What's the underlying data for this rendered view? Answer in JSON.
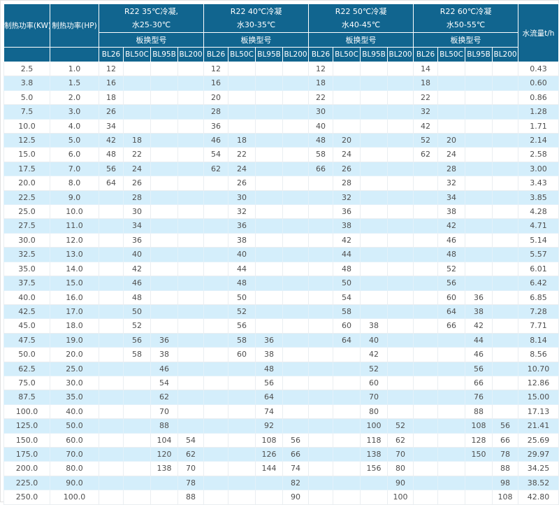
{
  "colors": {
    "header_bg": "#11658f",
    "row_alt_bg": "#d4eefb",
    "data_text": "#4f4f4f"
  },
  "table": {
    "col_kw": "制热功率(KW)",
    "col_hp": "制热功率(HP)",
    "col_flow": "水流量t/h",
    "subheader": "板换型号",
    "models": [
      "BL26",
      "BL50C",
      "BL95B",
      "BL200"
    ],
    "groups": [
      {
        "title_line1": "R22 35℃冷凝,",
        "title_line2": "水25-30℃"
      },
      {
        "title_line1": "R22 40℃冷凝",
        "title_line2": "水30-35℃"
      },
      {
        "title_line1": "R22 50℃冷凝",
        "title_line2": "水40-45℃"
      },
      {
        "title_line1": "R22 60℃冷凝",
        "title_line2": "水50-55℃"
      }
    ],
    "rows": [
      {
        "kw": "2.5",
        "hp": "1.0",
        "g1": [
          "12",
          "",
          "",
          ""
        ],
        "g2": [
          "12",
          "",
          "",
          ""
        ],
        "g3": [
          "12",
          "",
          "",
          ""
        ],
        "g4": [
          "14",
          "",
          "",
          ""
        ],
        "flow": "0.43"
      },
      {
        "kw": "3.8",
        "hp": "1.5",
        "g1": [
          "16",
          "",
          "",
          ""
        ],
        "g2": [
          "16",
          "",
          "",
          ""
        ],
        "g3": [
          "18",
          "",
          "",
          ""
        ],
        "g4": [
          "18",
          "",
          "",
          ""
        ],
        "flow": "0.60"
      },
      {
        "kw": "5.0",
        "hp": "2.0",
        "g1": [
          "18",
          "",
          "",
          ""
        ],
        "g2": [
          "20",
          "",
          "",
          ""
        ],
        "g3": [
          "22",
          "",
          "",
          ""
        ],
        "g4": [
          "22",
          "",
          "",
          ""
        ],
        "flow": "0.86"
      },
      {
        "kw": "7.5",
        "hp": "3.0",
        "g1": [
          "26",
          "",
          "",
          ""
        ],
        "g2": [
          "28",
          "",
          "",
          ""
        ],
        "g3": [
          "30",
          "",
          "",
          ""
        ],
        "g4": [
          "32",
          "",
          "",
          ""
        ],
        "flow": "1.28"
      },
      {
        "kw": "10.0",
        "hp": "4.0",
        "g1": [
          "34",
          "",
          "",
          ""
        ],
        "g2": [
          "36",
          "",
          "",
          ""
        ],
        "g3": [
          "40",
          "",
          "",
          ""
        ],
        "g4": [
          "42",
          "",
          "",
          ""
        ],
        "flow": "1.71"
      },
      {
        "kw": "12.5",
        "hp": "5.0",
        "g1": [
          "42",
          "18",
          "",
          ""
        ],
        "g2": [
          "46",
          "18",
          "",
          ""
        ],
        "g3": [
          "48",
          "20",
          "",
          ""
        ],
        "g4": [
          "52",
          "20",
          "",
          ""
        ],
        "flow": "2.14"
      },
      {
        "kw": "15.0",
        "hp": "6.0",
        "g1": [
          "48",
          "22",
          "",
          ""
        ],
        "g2": [
          "54",
          "22",
          "",
          ""
        ],
        "g3": [
          "58",
          "24",
          "",
          ""
        ],
        "g4": [
          "62",
          "24",
          "",
          ""
        ],
        "flow": "2.58"
      },
      {
        "kw": "17.5",
        "hp": "7.0",
        "g1": [
          "56",
          "24",
          "",
          ""
        ],
        "g2": [
          "62",
          "24",
          "",
          ""
        ],
        "g3": [
          "66",
          "26",
          "",
          ""
        ],
        "g4": [
          "",
          "28",
          "",
          ""
        ],
        "flow": "3.00"
      },
      {
        "kw": "20.0",
        "hp": "8.0",
        "g1": [
          "64",
          "26",
          "",
          ""
        ],
        "g2": [
          "",
          "26",
          "",
          ""
        ],
        "g3": [
          "",
          "28",
          "",
          ""
        ],
        "g4": [
          "",
          "32",
          "",
          ""
        ],
        "flow": "3.43"
      },
      {
        "kw": "22.5",
        "hp": "9.0",
        "g1": [
          "",
          "28",
          "",
          ""
        ],
        "g2": [
          "",
          "30",
          "",
          ""
        ],
        "g3": [
          "",
          "32",
          "",
          ""
        ],
        "g4": [
          "",
          "34",
          "",
          ""
        ],
        "flow": "3.85"
      },
      {
        "kw": "25.0",
        "hp": "10.0",
        "g1": [
          "",
          "30",
          "",
          ""
        ],
        "g2": [
          "",
          "32",
          "",
          ""
        ],
        "g3": [
          "",
          "36",
          "",
          ""
        ],
        "g4": [
          "",
          "38",
          "",
          ""
        ],
        "flow": "4.28"
      },
      {
        "kw": "27.5",
        "hp": "11.0",
        "g1": [
          "",
          "34",
          "",
          ""
        ],
        "g2": [
          "",
          "36",
          "",
          ""
        ],
        "g3": [
          "",
          "38",
          "",
          ""
        ],
        "g4": [
          "",
          "42",
          "",
          ""
        ],
        "flow": "4.71"
      },
      {
        "kw": "30.0",
        "hp": "12.0",
        "g1": [
          "",
          "36",
          "",
          ""
        ],
        "g2": [
          "",
          "38",
          "",
          ""
        ],
        "g3": [
          "",
          "42",
          "",
          ""
        ],
        "g4": [
          "",
          "46",
          "",
          ""
        ],
        "flow": "5.14"
      },
      {
        "kw": "32.5",
        "hp": "13.0",
        "g1": [
          "",
          "40",
          "",
          ""
        ],
        "g2": [
          "",
          "40",
          "",
          ""
        ],
        "g3": [
          "",
          "44",
          "",
          ""
        ],
        "g4": [
          "",
          "48",
          "",
          ""
        ],
        "flow": "5.57"
      },
      {
        "kw": "35.0",
        "hp": "14.0",
        "g1": [
          "",
          "42",
          "",
          ""
        ],
        "g2": [
          "",
          "44",
          "",
          ""
        ],
        "g3": [
          "",
          "48",
          "",
          ""
        ],
        "g4": [
          "",
          "52",
          "",
          ""
        ],
        "flow": "6.01"
      },
      {
        "kw": "37.5",
        "hp": "15.0",
        "g1": [
          "",
          "46",
          "",
          ""
        ],
        "g2": [
          "",
          "48",
          "",
          ""
        ],
        "g3": [
          "",
          "50",
          "",
          ""
        ],
        "g4": [
          "",
          "56",
          "",
          ""
        ],
        "flow": "6.42"
      },
      {
        "kw": "40.0",
        "hp": "16.0",
        "g1": [
          "",
          "48",
          "",
          ""
        ],
        "g2": [
          "",
          "50",
          "",
          ""
        ],
        "g3": [
          "",
          "54",
          "",
          ""
        ],
        "g4": [
          "",
          "60",
          "36",
          ""
        ],
        "flow": "6.85"
      },
      {
        "kw": "42.5",
        "hp": "17.0",
        "g1": [
          "",
          "50",
          "",
          ""
        ],
        "g2": [
          "",
          "52",
          "",
          ""
        ],
        "g3": [
          "",
          "58",
          "",
          ""
        ],
        "g4": [
          "",
          "64",
          "38",
          ""
        ],
        "flow": "7.28"
      },
      {
        "kw": "45.0",
        "hp": "18.0",
        "g1": [
          "",
          "52",
          "",
          ""
        ],
        "g2": [
          "",
          "56",
          "",
          ""
        ],
        "g3": [
          "",
          "60",
          "38",
          ""
        ],
        "g4": [
          "",
          "66",
          "42",
          ""
        ],
        "flow": "7.71"
      },
      {
        "kw": "47.5",
        "hp": "19.0",
        "g1": [
          "",
          "56",
          "36",
          ""
        ],
        "g2": [
          "",
          "58",
          "36",
          ""
        ],
        "g3": [
          "",
          "64",
          "40",
          ""
        ],
        "g4": [
          "",
          "",
          "44",
          ""
        ],
        "flow": "8.14"
      },
      {
        "kw": "50.0",
        "hp": "20.0",
        "g1": [
          "",
          "58",
          "38",
          ""
        ],
        "g2": [
          "",
          "60",
          "38",
          ""
        ],
        "g3": [
          "",
          "",
          "42",
          ""
        ],
        "g4": [
          "",
          "",
          "46",
          ""
        ],
        "flow": "8.56"
      },
      {
        "kw": "62.5",
        "hp": "25.0",
        "g1": [
          "",
          "",
          "46",
          ""
        ],
        "g2": [
          "",
          "",
          "48",
          ""
        ],
        "g3": [
          "",
          "",
          "52",
          ""
        ],
        "g4": [
          "",
          "",
          "56",
          ""
        ],
        "flow": "10.70"
      },
      {
        "kw": "75.0",
        "hp": "30.0",
        "g1": [
          "",
          "",
          "54",
          ""
        ],
        "g2": [
          "",
          "",
          "56",
          ""
        ],
        "g3": [
          "",
          "",
          "60",
          ""
        ],
        "g4": [
          "",
          "",
          "66",
          ""
        ],
        "flow": "12.86"
      },
      {
        "kw": "87.5",
        "hp": "35.0",
        "g1": [
          "",
          "",
          "62",
          ""
        ],
        "g2": [
          "",
          "",
          "64",
          ""
        ],
        "g3": [
          "",
          "",
          "70",
          ""
        ],
        "g4": [
          "",
          "",
          "76",
          ""
        ],
        "flow": "15.00"
      },
      {
        "kw": "100.0",
        "hp": "40.0",
        "g1": [
          "",
          "",
          "70",
          ""
        ],
        "g2": [
          "",
          "",
          "74",
          ""
        ],
        "g3": [
          "",
          "",
          "80",
          ""
        ],
        "g4": [
          "",
          "",
          "88",
          ""
        ],
        "flow": "17.13"
      },
      {
        "kw": "125.0",
        "hp": "50.0",
        "g1": [
          "",
          "",
          "88",
          ""
        ],
        "g2": [
          "",
          "",
          "92",
          ""
        ],
        "g3": [
          "",
          "",
          "100",
          "52"
        ],
        "g4": [
          "",
          "",
          "108",
          "56"
        ],
        "flow": "21.41"
      },
      {
        "kw": "150.0",
        "hp": "60.0",
        "g1": [
          "",
          "",
          "104",
          "54"
        ],
        "g2": [
          "",
          "",
          "108",
          "56"
        ],
        "g3": [
          "",
          "",
          "118",
          "62"
        ],
        "g4": [
          "",
          "",
          "128",
          "66"
        ],
        "flow": "25.69"
      },
      {
        "kw": "175.0",
        "hp": "70.0",
        "g1": [
          "",
          "",
          "120",
          "62"
        ],
        "g2": [
          "",
          "",
          "126",
          "66"
        ],
        "g3": [
          "",
          "",
          "138",
          "70"
        ],
        "g4": [
          "",
          "",
          "150",
          "78"
        ],
        "flow": "29.97"
      },
      {
        "kw": "200.0",
        "hp": "80.0",
        "g1": [
          "",
          "",
          "138",
          "70"
        ],
        "g2": [
          "",
          "",
          "144",
          "74"
        ],
        "g3": [
          "",
          "",
          "156",
          "80"
        ],
        "g4": [
          "",
          "",
          "",
          "88"
        ],
        "flow": "34.25"
      },
      {
        "kw": "225.0",
        "hp": "90.0",
        "g1": [
          "",
          "",
          "",
          "78"
        ],
        "g2": [
          "",
          "",
          "",
          "82"
        ],
        "g3": [
          "",
          "",
          "",
          "90"
        ],
        "g4": [
          "",
          "",
          "",
          "98"
        ],
        "flow": "38.52"
      },
      {
        "kw": "250.0",
        "hp": "100.0",
        "g1": [
          "",
          "",
          "",
          "88"
        ],
        "g2": [
          "",
          "",
          "",
          "90"
        ],
        "g3": [
          "",
          "",
          "",
          "100"
        ],
        "g4": [
          "",
          "",
          "",
          "108"
        ],
        "flow": "42.80"
      }
    ]
  }
}
